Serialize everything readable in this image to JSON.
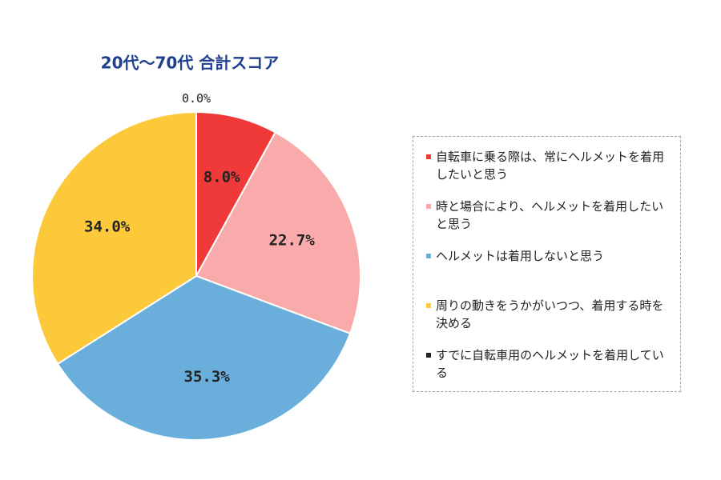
{
  "chart_data": {
    "type": "pie",
    "title": "20代～70代 合計スコア",
    "categories": [
      "自転車に乗る際は、常にヘルメットを着用したいと思う",
      "時と場合により、ヘルメットを着用したいと思う",
      "ヘルメットは着用しないと思う",
      "周りの動きをうかがいつつ、着用する時を決める",
      "すでに自転車用のヘルメットを着用している"
    ],
    "values": [
      8.0,
      22.7,
      35.3,
      34.0,
      0.0
    ],
    "value_labels": [
      "8.0%",
      "22.7%",
      "35.3%",
      "34.0%",
      "0.0%"
    ],
    "colors": [
      "#f03a3a",
      "#f9abab",
      "#6aaedc",
      "#fcc93a",
      "#222222"
    ],
    "legend": "right"
  }
}
